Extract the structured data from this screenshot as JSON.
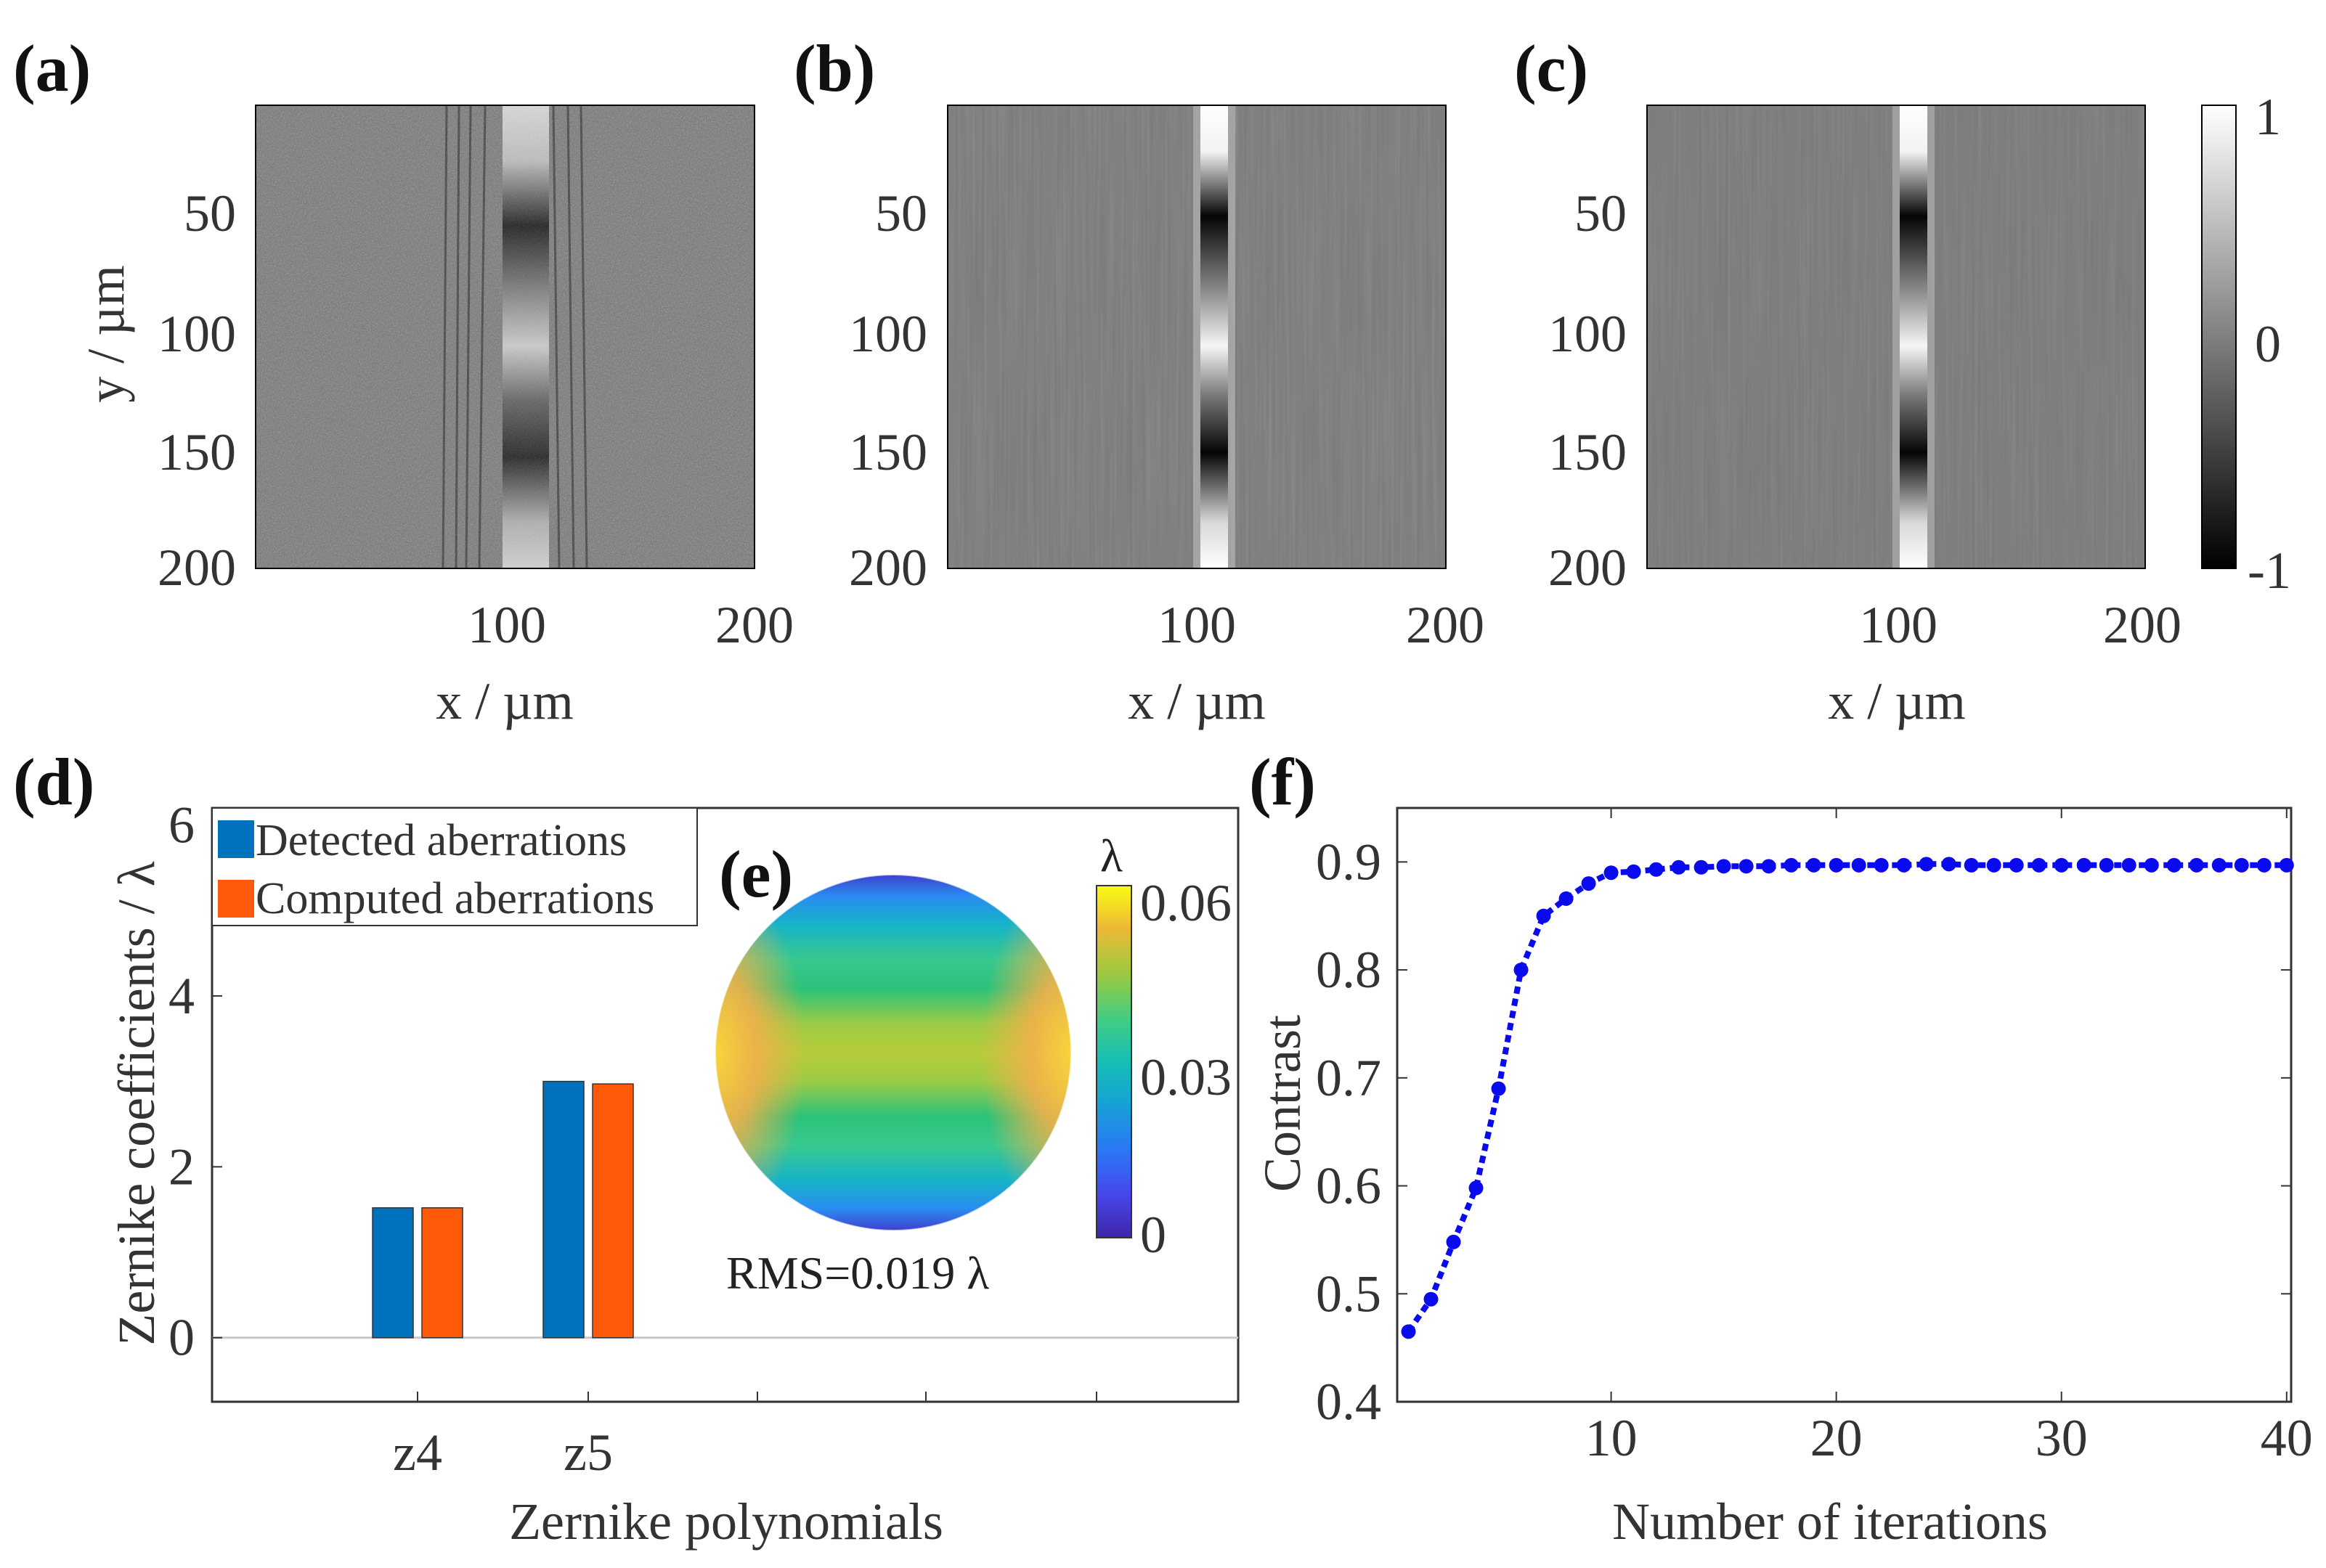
{
  "panels": {
    "a": "(a)",
    "b": "(b)",
    "c": "(c)",
    "d": "(d)",
    "e": "(e)",
    "f": "(f)"
  },
  "colors": {
    "detected": "#0072BD",
    "computed": "#FF5A0A",
    "curve": "#0A0AEE"
  },
  "images": {
    "xlabel": "x / µm",
    "ylabel": "y / µm",
    "xticks": [
      "100",
      "200"
    ],
    "yticks": [
      "50",
      "100",
      "150",
      "200"
    ],
    "colorbar_ticks": [
      "1",
      "0",
      "-1"
    ]
  },
  "chart_data": [
    {
      "panel": "d",
      "type": "bar",
      "title": "",
      "categories": [
        "z4",
        "z5"
      ],
      "series": [
        {
          "name": "Detected aberrations",
          "values": [
            1.52,
            3.0
          ]
        },
        {
          "name": "Computed aberrations",
          "values": [
            1.52,
            2.97
          ]
        }
      ],
      "xlabel": "Zernike polynomials",
      "ylabel": "Zernike coefficients / λ",
      "ylim": [
        -0.75,
        6.2
      ],
      "yticks": [
        "0",
        "2",
        "4",
        "6"
      ],
      "legend": "top-left"
    },
    {
      "panel": "e",
      "type": "heatmap",
      "colorbar_label": "λ",
      "colorbar_ticks": [
        "0.06",
        "0.03",
        "0"
      ],
      "range": [
        0,
        0.065
      ],
      "annotation": "RMS=0.019 λ"
    },
    {
      "panel": "f",
      "type": "line",
      "x": [
        1,
        2,
        3,
        4,
        5,
        6,
        7,
        8,
        9,
        10,
        11,
        12,
        13,
        14,
        15,
        16,
        17,
        18,
        19,
        20,
        21,
        22,
        23,
        24,
        25,
        26,
        27,
        28,
        29,
        30,
        31,
        32,
        33,
        34,
        35,
        36,
        37,
        38,
        39,
        40
      ],
      "y": [
        0.465,
        0.495,
        0.548,
        0.598,
        0.69,
        0.8,
        0.85,
        0.866,
        0.88,
        0.89,
        0.891,
        0.893,
        0.895,
        0.895,
        0.896,
        0.896,
        0.896,
        0.897,
        0.897,
        0.897,
        0.897,
        0.897,
        0.897,
        0.898,
        0.898,
        0.897,
        0.897,
        0.897,
        0.897,
        0.897,
        0.897,
        0.897,
        0.897,
        0.897,
        0.897,
        0.897,
        0.897,
        0.897,
        0.897,
        0.897
      ],
      "xlabel": "Number of iterations",
      "ylabel": "Contrast",
      "xlim": [
        0.5,
        40.2
      ],
      "ylim": [
        0.4,
        0.95
      ],
      "xticks": [
        "10",
        "20",
        "30",
        "40"
      ],
      "yticks": [
        "0.4",
        "0.5",
        "0.6",
        "0.7",
        "0.8",
        "0.9"
      ]
    }
  ]
}
